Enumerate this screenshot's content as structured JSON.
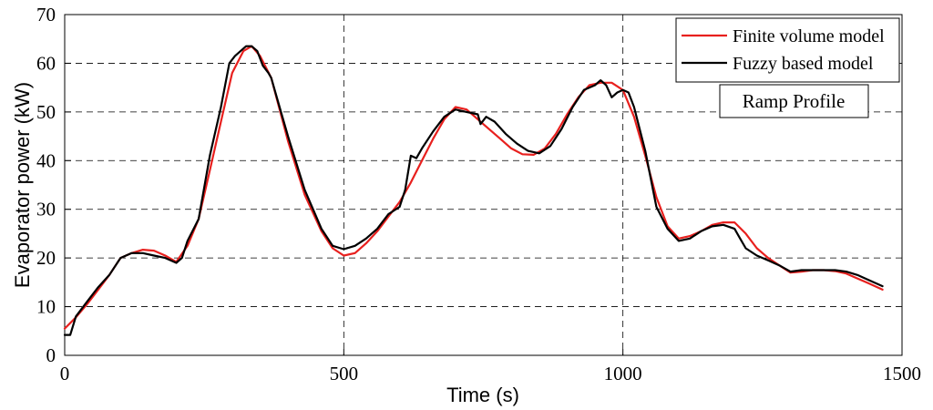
{
  "chart_data": {
    "type": "line",
    "xlabel": "Time (s)",
    "ylabel": "Evaporator power (kW)",
    "xlim": [
      0,
      1500
    ],
    "ylim": [
      0,
      70
    ],
    "xticks": [
      0,
      500,
      1000,
      1500
    ],
    "yticks": [
      0,
      10,
      20,
      30,
      40,
      50,
      60,
      70
    ],
    "grid": true,
    "legend_position": "top-right",
    "annotation": "Ramp Profile",
    "series": [
      {
        "name": "Finite volume model",
        "color": "#e8201e",
        "x": [
          0,
          20,
          40,
          60,
          80,
          100,
          120,
          140,
          160,
          180,
          200,
          220,
          240,
          260,
          280,
          300,
          320,
          335,
          350,
          370,
          400,
          430,
          460,
          480,
          500,
          520,
          540,
          560,
          580,
          600,
          620,
          640,
          660,
          680,
          700,
          720,
          740,
          760,
          780,
          800,
          820,
          840,
          860,
          880,
          900,
          920,
          940,
          960,
          980,
          1000,
          1020,
          1040,
          1060,
          1080,
          1100,
          1120,
          1140,
          1160,
          1180,
          1200,
          1220,
          1240,
          1260,
          1280,
          1300,
          1320,
          1340,
          1360,
          1380,
          1400,
          1420,
          1440,
          1465
        ],
        "y": [
          5.5,
          7.8,
          10.5,
          13.5,
          16.5,
          20,
          21,
          21.7,
          21.5,
          20.5,
          19.2,
          22.5,
          28,
          38,
          48,
          58,
          62.5,
          63.5,
          61.5,
          57,
          44,
          33,
          25.5,
          22,
          20.5,
          21,
          23,
          25.5,
          28.5,
          31.5,
          35.5,
          40,
          44.5,
          48.5,
          51,
          50.5,
          48.5,
          46.5,
          44.5,
          42.5,
          41.3,
          41.2,
          42.5,
          45.5,
          49.5,
          53,
          55.5,
          56,
          56,
          54.5,
          49,
          41,
          32.5,
          26.5,
          24,
          24.5,
          25.5,
          26.8,
          27.3,
          27.3,
          25,
          22,
          20,
          18.5,
          17,
          17.2,
          17.5,
          17.5,
          17.3,
          16.8,
          15.8,
          14.8,
          13.5
        ]
      },
      {
        "name": "Fuzzy based model",
        "color": "#000000",
        "x": [
          0,
          10,
          20,
          40,
          60,
          80,
          100,
          120,
          140,
          160,
          180,
          200,
          210,
          220,
          240,
          260,
          280,
          295,
          305,
          315,
          325,
          335,
          345,
          355,
          365,
          370,
          380,
          400,
          430,
          460,
          480,
          500,
          520,
          540,
          560,
          580,
          600,
          610,
          620,
          630,
          640,
          660,
          680,
          700,
          720,
          740,
          745,
          755,
          770,
          790,
          810,
          830,
          850,
          870,
          890,
          910,
          930,
          950,
          960,
          970,
          980,
          990,
          1000,
          1010,
          1020,
          1040,
          1060,
          1080,
          1100,
          1120,
          1140,
          1160,
          1180,
          1200,
          1210,
          1220,
          1240,
          1260,
          1280,
          1300,
          1320,
          1340,
          1360,
          1380,
          1400,
          1420,
          1440,
          1465
        ],
        "y": [
          4.2,
          4.2,
          8,
          11,
          14,
          16.5,
          20,
          21,
          21,
          20.5,
          20,
          19,
          20,
          23.5,
          28,
          41,
          51,
          60,
          61.5,
          62.5,
          63.5,
          63.5,
          62.5,
          59.5,
          58,
          57,
          53,
          45,
          34,
          26,
          22.5,
          21.8,
          22.5,
          24,
          26,
          29,
          30.5,
          34,
          41,
          40.5,
          42.5,
          46,
          49,
          50.5,
          50,
          49.5,
          47.5,
          49,
          48,
          45.5,
          43.5,
          42,
          41.5,
          43,
          46.5,
          51,
          54.5,
          55.5,
          56.5,
          55.5,
          53,
          54,
          54.5,
          54,
          51,
          42,
          30.5,
          26,
          23.5,
          24,
          25.5,
          26.5,
          26.8,
          26,
          24,
          22,
          20.5,
          19.5,
          18.5,
          17.2,
          17.5,
          17.5,
          17.5,
          17.5,
          17.2,
          16.5,
          15.5,
          14.2
        ]
      }
    ]
  }
}
